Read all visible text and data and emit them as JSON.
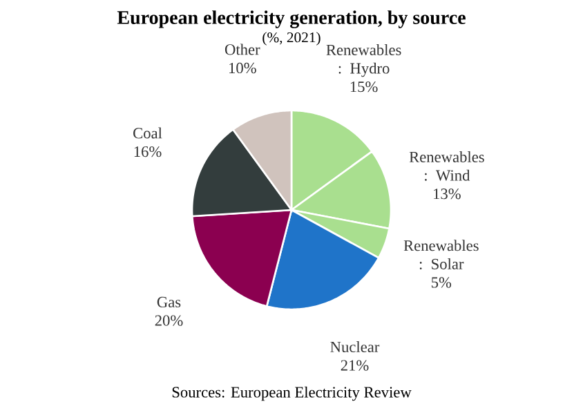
{
  "chart_data": {
    "type": "pie",
    "title": "European electricity generation, by source",
    "subtitle": "(%, 2021)",
    "categories": [
      "Renewables : Hydro",
      "Renewables : Wind",
      "Renewables : Solar",
      "Nuclear",
      "Gas",
      "Coal",
      "Other"
    ],
    "values": [
      15,
      13,
      5,
      21,
      20,
      16,
      10
    ],
    "value_labels": [
      "15%",
      "13%",
      "5%",
      "21%",
      "20%",
      "16%",
      "10%"
    ],
    "colors": [
      "#a9df8f",
      "#a9df8f",
      "#a9df8f",
      "#1f74c9",
      "#8b0050",
      "#333d3d",
      "#d0c3bd"
    ],
    "annotations": [
      "Sources: European Electricity Review"
    ]
  }
}
